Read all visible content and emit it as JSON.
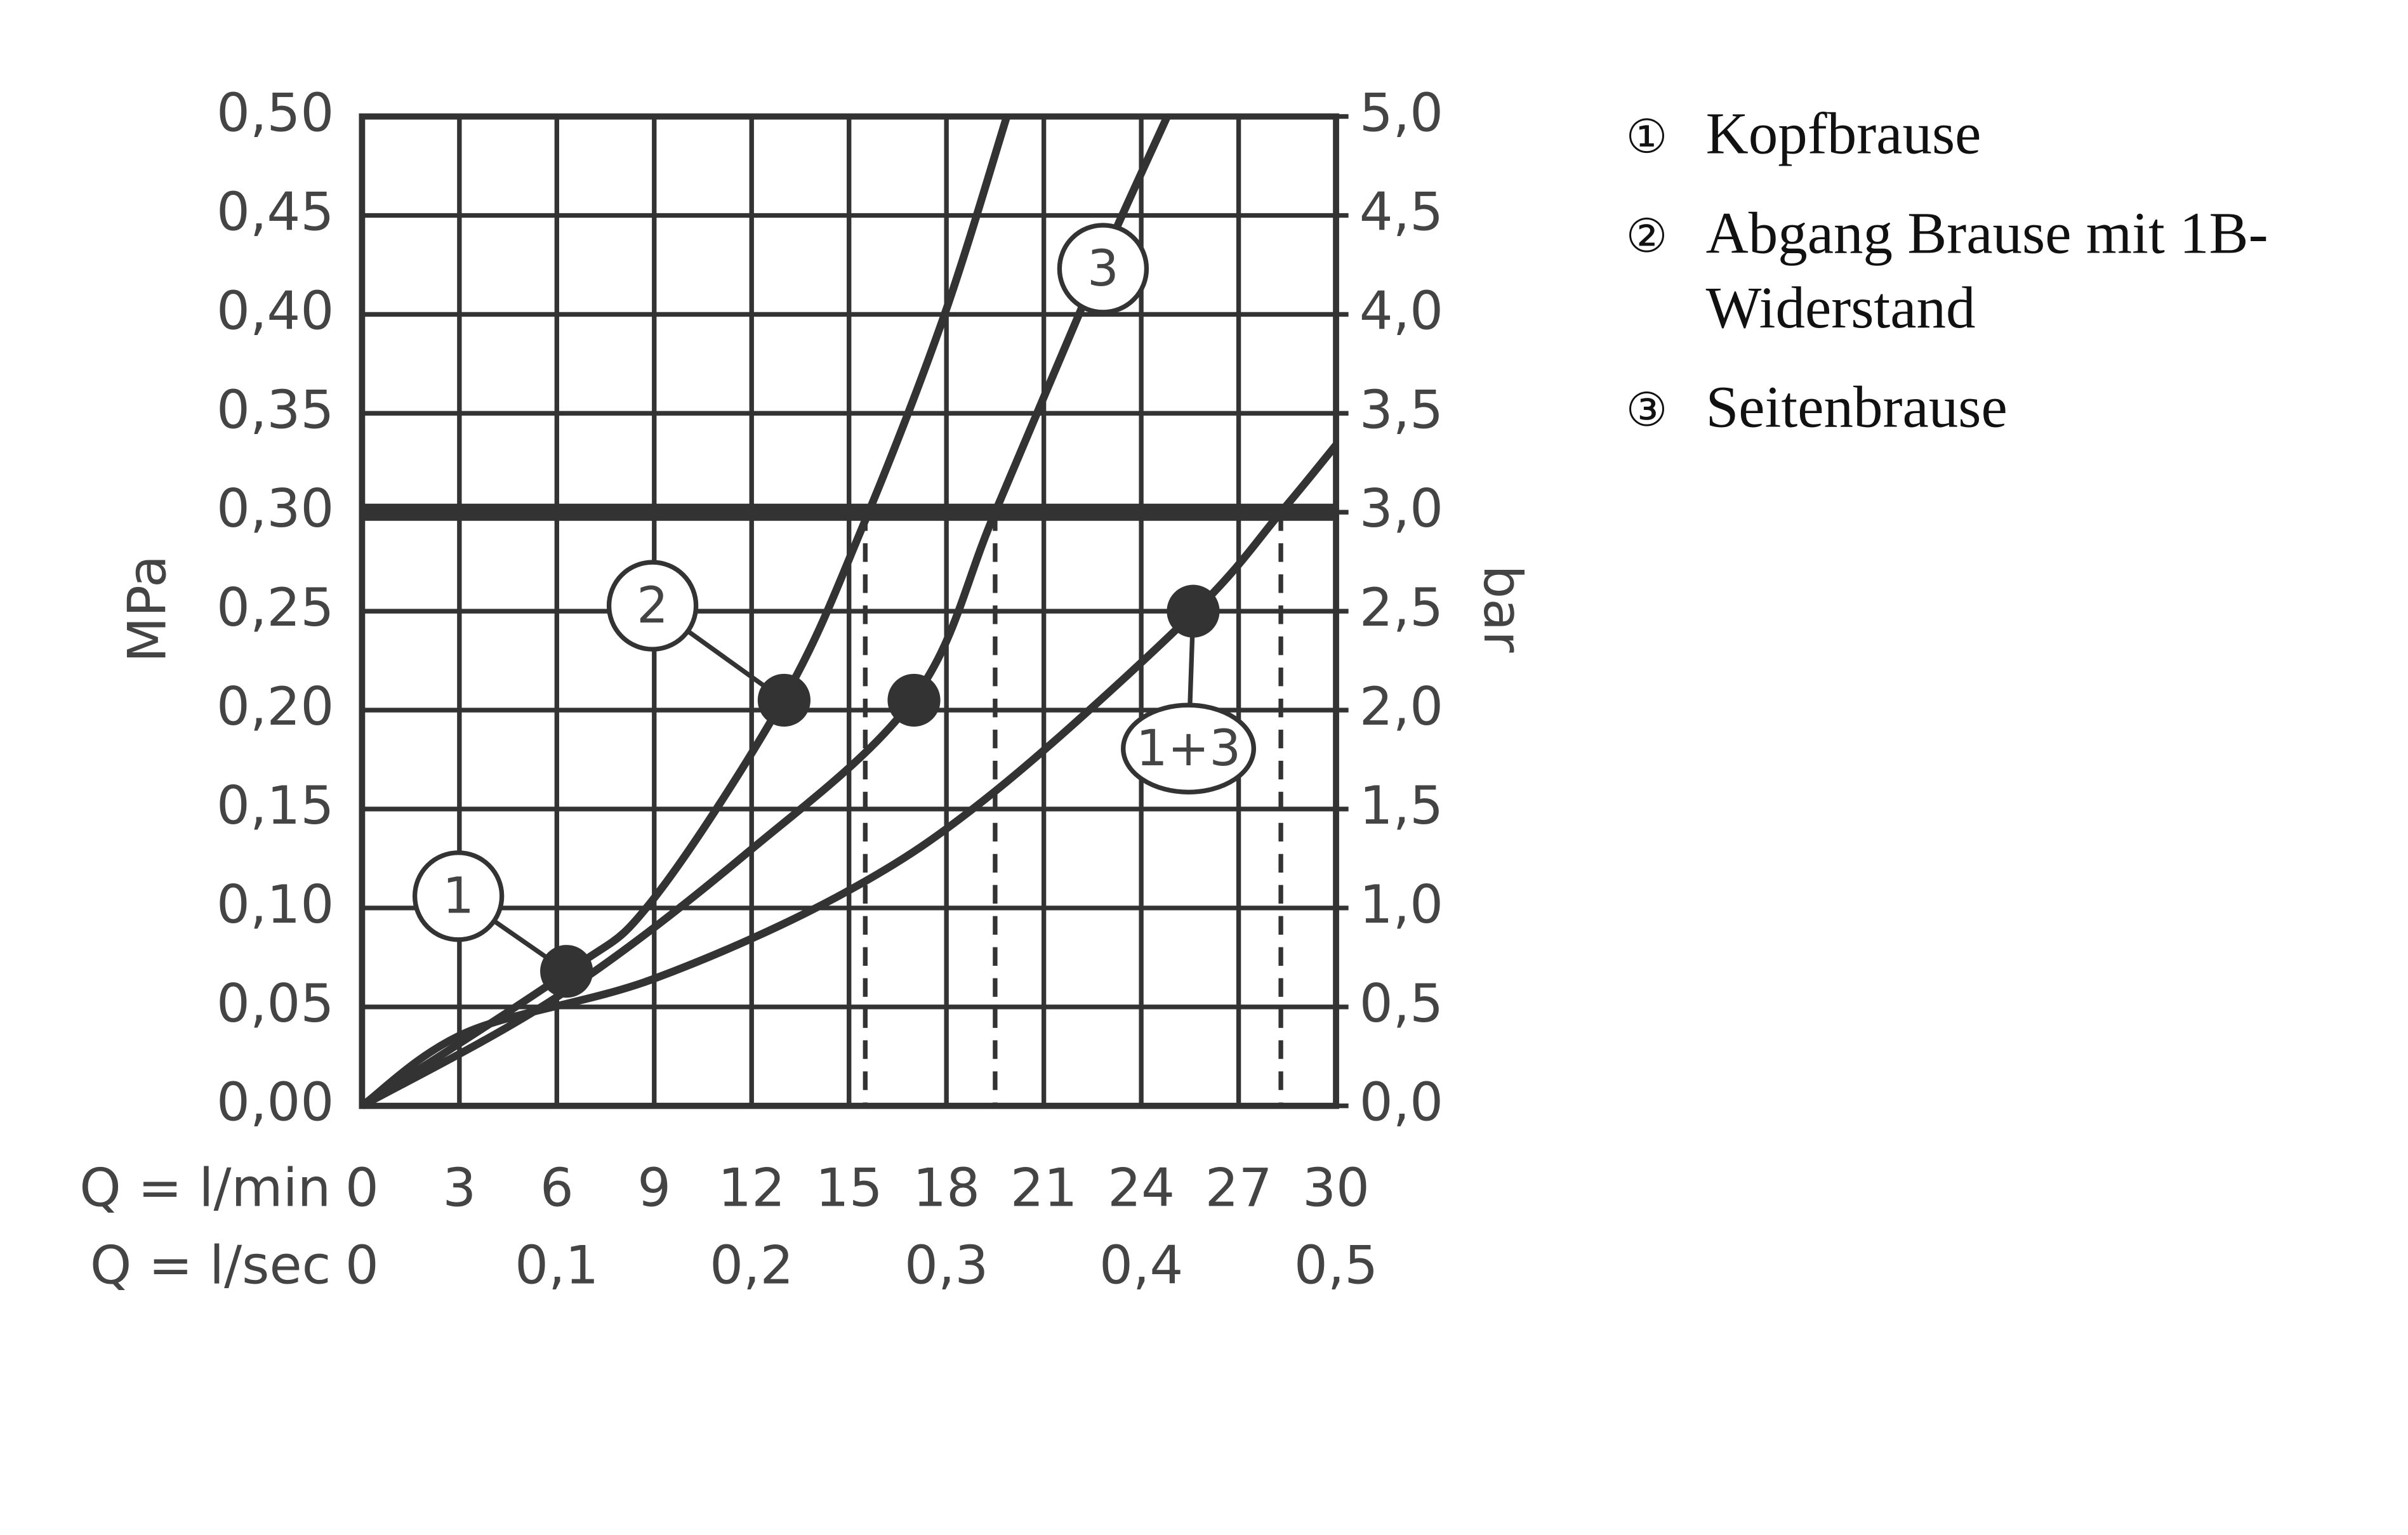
{
  "chart_data": {
    "type": "line",
    "series": [
      {
        "x": [
          0,
          6.36,
          8.95,
          13.0,
          15.4,
          17.9,
          19.86
        ],
        "values": [
          0,
          0.068,
          0.104,
          0.206,
          0.292,
          0.398,
          0.5
        ],
        "color": "#333"
      },
      {
        "x": [
          0,
          6.0,
          11.8,
          17.0,
          19.5,
          22.6,
          24.8
        ],
        "values": [
          0,
          0.055,
          0.127,
          0.206,
          0.3,
          0.42,
          0.5
        ],
        "color": "#333"
      },
      {
        "x": [
          0,
          3.2,
          8.95,
          14.9,
          19.5,
          25.6,
          28.3,
          30
        ],
        "values": [
          0,
          0.037,
          0.064,
          0.108,
          0.159,
          0.249,
          0.3,
          0.334
        ],
        "color": "#333"
      }
    ],
    "points": [
      {
        "x": 6.3,
        "y": 0.068
      },
      {
        "x": 13.0,
        "y": 0.205
      },
      {
        "x": 17.0,
        "y": 0.205
      },
      {
        "x": 25.6,
        "y": 0.25
      }
    ],
    "annotations": [
      "1",
      "2",
      "3",
      "1+3"
    ],
    "hline": 0.3,
    "vlines": [
      15.5,
      19.5,
      28.3
    ],
    "xlim": [
      0,
      30
    ],
    "xticks": [
      0,
      3,
      6,
      9,
      12,
      15,
      18,
      21,
      24,
      27,
      30
    ],
    "xlabel": "Q = l/min",
    "x2lim": [
      0,
      0.5
    ],
    "x2ticks": [
      0,
      {
        "value": 0.1,
        "label": "0,1"
      },
      {
        "value": 0.2,
        "label": "0,2"
      },
      {
        "value": 0.3,
        "label": "0,3"
      },
      {
        "value": 0.4,
        "label": "0,4"
      },
      {
        "value": 0.5,
        "label": "0,5"
      }
    ],
    "x2label": "Q = l/sec",
    "ylim": [
      0,
      0.5
    ],
    "yticks": [
      {
        "value": 0,
        "label": "0,00"
      },
      {
        "value": 0.05,
        "label": "0,05"
      },
      {
        "value": 0.1,
        "label": "0,10"
      },
      {
        "value": 0.15,
        "label": "0,15"
      },
      {
        "value": 0.2,
        "label": "0,20"
      },
      {
        "value": 0.25,
        "label": "0,25"
      },
      {
        "value": 0.3,
        "label": "0,30"
      },
      {
        "value": 0.35,
        "label": "0,35"
      },
      {
        "value": 0.4,
        "label": "0,40"
      },
      {
        "value": 0.45,
        "label": "0,45"
      },
      {
        "value": 0.5,
        "label": "0,50"
      }
    ],
    "ylabel": "MPa",
    "y2lim": [
      0,
      5
    ],
    "y2ticks": [
      {
        "value": 0,
        "label": "0,0"
      },
      {
        "value": 0.5,
        "label": "0,5"
      },
      {
        "value": 1,
        "label": "1,0"
      },
      {
        "value": 1.5,
        "label": "1,5"
      },
      {
        "value": 2,
        "label": "2,0"
      },
      {
        "value": 2.5,
        "label": "2,5"
      },
      {
        "value": 3,
        "label": "3,0"
      },
      {
        "value": 3.5,
        "label": "3,5"
      },
      {
        "value": 4,
        "label": "4,0"
      },
      {
        "value": 4.5,
        "label": "4,5"
      },
      {
        "value": 5,
        "label": "5,0"
      }
    ],
    "y2label": "bar",
    "grid": true,
    "legend": [
      {
        "marker": "①",
        "lines": [
          "Kopfbrause"
        ]
      },
      {
        "marker": "②",
        "lines": [
          "Abgang Brause mit 1B-",
          "Widerstand"
        ]
      },
      {
        "marker": "③",
        "lines": [
          "Seitenbrause"
        ]
      }
    ]
  }
}
